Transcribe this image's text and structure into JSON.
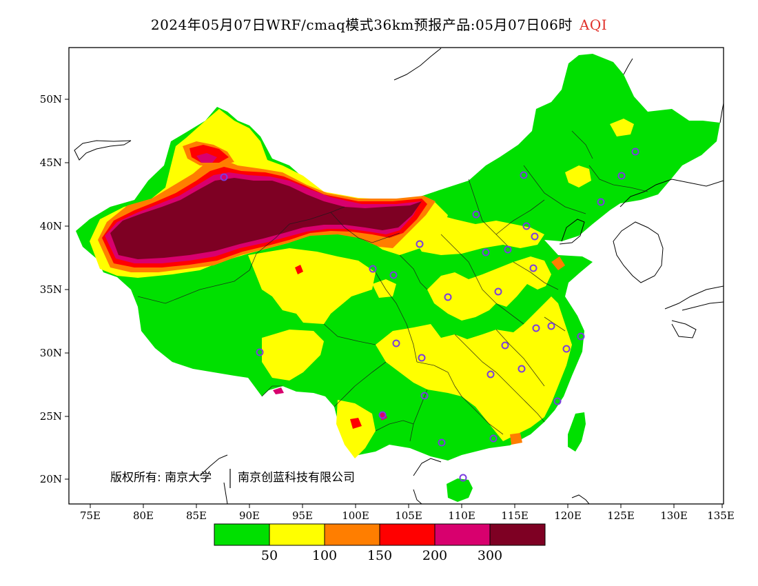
{
  "header": {
    "title": "2024年05月07日WRF/cmaq模式36km预报产品:05月07日06时",
    "metric": "AQI",
    "metric_color": "#e0302a"
  },
  "map": {
    "lon_ticks": [
      "75E",
      "80E",
      "85E",
      "90E",
      "95E",
      "100E",
      "105E",
      "110E",
      "115E",
      "120E",
      "125E",
      "130E",
      "135E"
    ],
    "lat_ticks": [
      "50N",
      "45N",
      "40N",
      "35N",
      "30N",
      "25N",
      "20N"
    ],
    "copyright": "版权所有: 南京大学",
    "copyright_org": "南京创蓝科技有限公司",
    "base_color": "#00e000",
    "station_marker_color": "#7a3ce0"
  },
  "legend": {
    "colors": [
      "#00e000",
      "#ffff00",
      "#ff7e00",
      "#ff0000",
      "#d8006e",
      "#7e0023"
    ],
    "labels": [
      "50",
      "100",
      "150",
      "200",
      "300"
    ]
  }
}
